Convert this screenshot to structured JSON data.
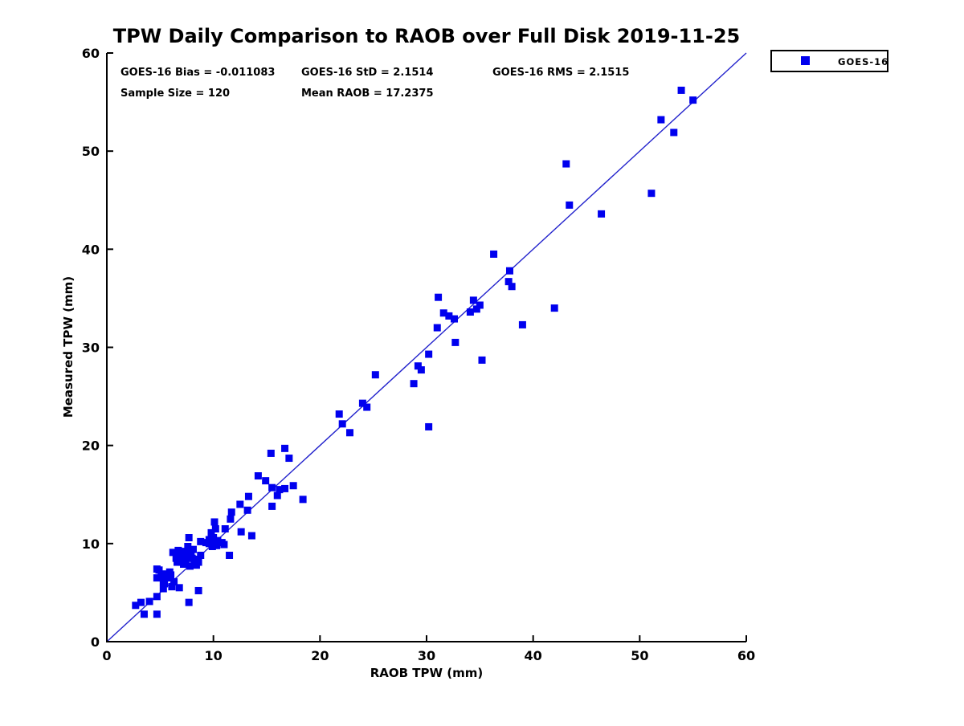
{
  "title": "TPW Daily Comparison to RAOB over Full Disk 2019-11-25",
  "stats": {
    "bias": "GOES-16 Bias = -0.011083",
    "std": "GOES-16 StD = 2.1514",
    "rms": "GOES-16 RMS = 2.1515",
    "sample": "Sample Size = 120",
    "mean_raob": "Mean RAOB = 17.2375"
  },
  "legend": {
    "label": "GOES-16",
    "marker_color": "#0000ee",
    "position": "top-right-outside"
  },
  "chart_data": {
    "type": "scatter",
    "title": "TPW Daily Comparison to RAOB over Full Disk 2019-11-25",
    "xlabel": "RAOB TPW (mm)",
    "ylabel": "Measured TPW (mm)",
    "xlim": [
      0,
      60
    ],
    "ylim": [
      0,
      60
    ],
    "xticks": [
      0,
      10,
      20,
      30,
      40,
      50,
      60
    ],
    "yticks": [
      0,
      10,
      20,
      30,
      40,
      50,
      60
    ],
    "grid": false,
    "marker": "square",
    "marker_size_px": 9,
    "marker_color": "#0000ee",
    "reference_line": {
      "from": [
        0,
        0
      ],
      "to": [
        60,
        60
      ],
      "color": "#2222cc",
      "meaning": "1:1 fit line"
    },
    "series": [
      {
        "name": "GOES-16",
        "color": "#0000ee",
        "points": [
          [
            2.7,
            3.7
          ],
          [
            3.2,
            4.0
          ],
          [
            3.5,
            2.8
          ],
          [
            4.7,
            2.8
          ],
          [
            4.0,
            4.1
          ],
          [
            4.7,
            4.6
          ],
          [
            5.3,
            5.4
          ],
          [
            4.9,
            7.3
          ],
          [
            5.3,
            6.9
          ],
          [
            5.7,
            6.6
          ],
          [
            5.9,
            7.1
          ],
          [
            5.3,
            6.1
          ],
          [
            6.1,
            5.6
          ],
          [
            6.8,
            5.5
          ],
          [
            6.2,
            9.1
          ],
          [
            6.7,
            9.3
          ],
          [
            6.9,
            8.8
          ],
          [
            7.2,
            8.4
          ],
          [
            7.4,
            8.0
          ],
          [
            7.7,
            8.5
          ],
          [
            7.9,
            8.9
          ],
          [
            7.3,
            9.2
          ],
          [
            7.6,
            9.7
          ],
          [
            7.8,
            7.7
          ],
          [
            8.2,
            8.2
          ],
          [
            8.4,
            7.8
          ],
          [
            8.8,
            8.8
          ],
          [
            7.7,
            10.6
          ],
          [
            9.3,
            10.1
          ],
          [
            9.8,
            11.1
          ],
          [
            10.2,
            10.0
          ],
          [
            9.9,
            9.7
          ],
          [
            10.4,
            10.3
          ],
          [
            10.8,
            10.1
          ],
          [
            10.2,
            11.5
          ],
          [
            8.6,
            5.2
          ],
          [
            7.7,
            4.0
          ],
          [
            9.6,
            10.0
          ],
          [
            8.8,
            10.2
          ],
          [
            11.0,
            9.9
          ],
          [
            6.8,
            8.8
          ],
          [
            6.6,
            8.1
          ],
          [
            8.4,
            8.4
          ],
          [
            6.3,
            6.1
          ],
          [
            5.4,
            5.9
          ],
          [
            4.7,
            7.4
          ],
          [
            4.7,
            6.5
          ],
          [
            5.7,
            6.5
          ],
          [
            7.1,
            8.9
          ],
          [
            7.5,
            8.7
          ],
          [
            7.0,
            8.1
          ],
          [
            7.8,
            9.0
          ],
          [
            8.0,
            8.5
          ],
          [
            6.5,
            8.5
          ],
          [
            7.2,
            7.9
          ],
          [
            9.6,
            10.4
          ],
          [
            10.0,
            10.6
          ],
          [
            10.3,
            9.8
          ],
          [
            5.1,
            6.7
          ],
          [
            6.0,
            6.8
          ],
          [
            8.1,
            9.4
          ],
          [
            8.6,
            8.1
          ],
          [
            14.9,
            16.4
          ],
          [
            15.5,
            15.7
          ],
          [
            16.2,
            15.5
          ],
          [
            16.7,
            15.6
          ],
          [
            17.5,
            15.9
          ],
          [
            16.0,
            14.9
          ],
          [
            18.4,
            14.5
          ],
          [
            13.3,
            14.8
          ],
          [
            15.5,
            13.8
          ],
          [
            12.5,
            14.0
          ],
          [
            13.2,
            13.4
          ],
          [
            11.7,
            13.2
          ],
          [
            11.6,
            12.5
          ],
          [
            10.1,
            12.2
          ],
          [
            11.1,
            11.5
          ],
          [
            12.6,
            11.2
          ],
          [
            13.6,
            10.8
          ],
          [
            11.5,
            8.8
          ],
          [
            14.2,
            16.9
          ],
          [
            15.4,
            19.2
          ],
          [
            16.7,
            19.7
          ],
          [
            17.1,
            18.7
          ],
          [
            21.8,
            23.2
          ],
          [
            22.1,
            22.2
          ],
          [
            22.8,
            21.3
          ],
          [
            24.0,
            24.3
          ],
          [
            24.4,
            23.9
          ],
          [
            30.2,
            21.9
          ],
          [
            25.2,
            27.2
          ],
          [
            28.8,
            26.3
          ],
          [
            29.2,
            28.1
          ],
          [
            29.5,
            27.7
          ],
          [
            30.2,
            29.3
          ],
          [
            31.0,
            32.0
          ],
          [
            31.6,
            33.5
          ],
          [
            32.1,
            33.2
          ],
          [
            32.6,
            32.9
          ],
          [
            32.7,
            30.5
          ],
          [
            34.1,
            33.6
          ],
          [
            34.7,
            33.9
          ],
          [
            34.4,
            34.8
          ],
          [
            35.0,
            34.3
          ],
          [
            35.2,
            28.7
          ],
          [
            31.1,
            35.1
          ],
          [
            36.3,
            39.5
          ],
          [
            37.8,
            37.8
          ],
          [
            37.7,
            36.7
          ],
          [
            38.0,
            36.2
          ],
          [
            39.0,
            32.3
          ],
          [
            42.0,
            34.0
          ],
          [
            43.1,
            48.7
          ],
          [
            43.4,
            44.5
          ],
          [
            46.4,
            43.6
          ],
          [
            51.1,
            45.7
          ],
          [
            53.9,
            56.2
          ],
          [
            55.0,
            55.2
          ],
          [
            52.0,
            53.2
          ],
          [
            53.2,
            51.9
          ]
        ]
      }
    ],
    "annotations": [
      "GOES-16 Bias = -0.011083",
      "GOES-16 StD = 2.1514",
      "GOES-16 RMS = 2.1515",
      "Sample Size = 120",
      "Mean RAOB = 17.2375"
    ],
    "legend_entries": [
      "GOES-16"
    ]
  }
}
